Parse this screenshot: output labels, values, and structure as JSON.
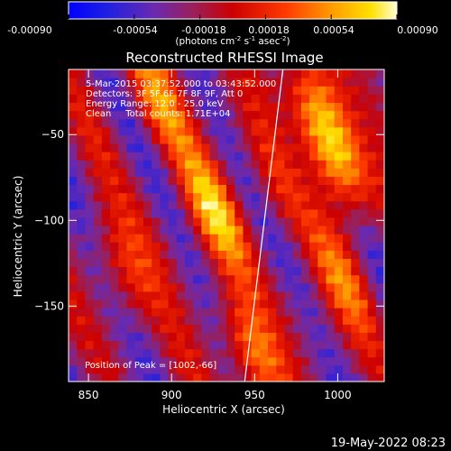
{
  "colorbar": {
    "tick_labels": [
      "-0.00090",
      "-0.00054",
      "-0.00018",
      "0.00018",
      "0.00054",
      "0.00090"
    ],
    "units_parts": [
      "(photons cm",
      "-2",
      " s",
      "-1",
      " asec",
      "-2",
      ")"
    ],
    "range": [
      -0.0009,
      0.0009
    ]
  },
  "chart_data": {
    "type": "heatmap",
    "title": "Reconstructed RHESSI Image",
    "xlabel": "Heliocentric X (arcsec)",
    "ylabel": "Heliocentric Y (arcsec)",
    "xlim": [
      838,
      1028
    ],
    "ylim": [
      -194,
      -12
    ],
    "x_ticks": [
      850,
      900,
      950,
      1000
    ],
    "x_tick_labels": [
      "850",
      "900",
      "950",
      "1000"
    ],
    "y_ticks": [
      -50,
      -100,
      -150
    ],
    "y_tick_labels": [
      "−50",
      "−100",
      "−150"
    ],
    "annotations": [
      "5-Mar-2015 03:37:52.000 to 03:43:52.000",
      "Detectors: 3F 5F 6F 7F 8F 9F, Att 0",
      "Energy Range: 12.0 - 25.0 keV",
      "Clean     Total counts: 1.71E+04"
    ],
    "peak_label": "Position of Peak = [1002,-66]",
    "peak_position": [
      1002,
      -66
    ],
    "limb_line": [
      [
        944,
        -194
      ],
      [
        967,
        -12
      ]
    ],
    "bright_spots": [
      {
        "x": 1000,
        "y": -65,
        "peak": 1.0
      },
      {
        "x": 925,
        "y": -95,
        "peak": 0.85
      },
      {
        "x": 948,
        "y": -178,
        "peak": 0.8
      },
      {
        "x": 985,
        "y": -30,
        "peak": 0.75
      },
      {
        "x": 890,
        "y": -30,
        "peak": 0.7
      },
      {
        "x": 1003,
        "y": -135,
        "peak": 0.55
      },
      {
        "x": 870,
        "y": -130,
        "peak": 0.5
      }
    ]
  },
  "footer": {
    "timestamp": "19-May-2022 08:23"
  }
}
